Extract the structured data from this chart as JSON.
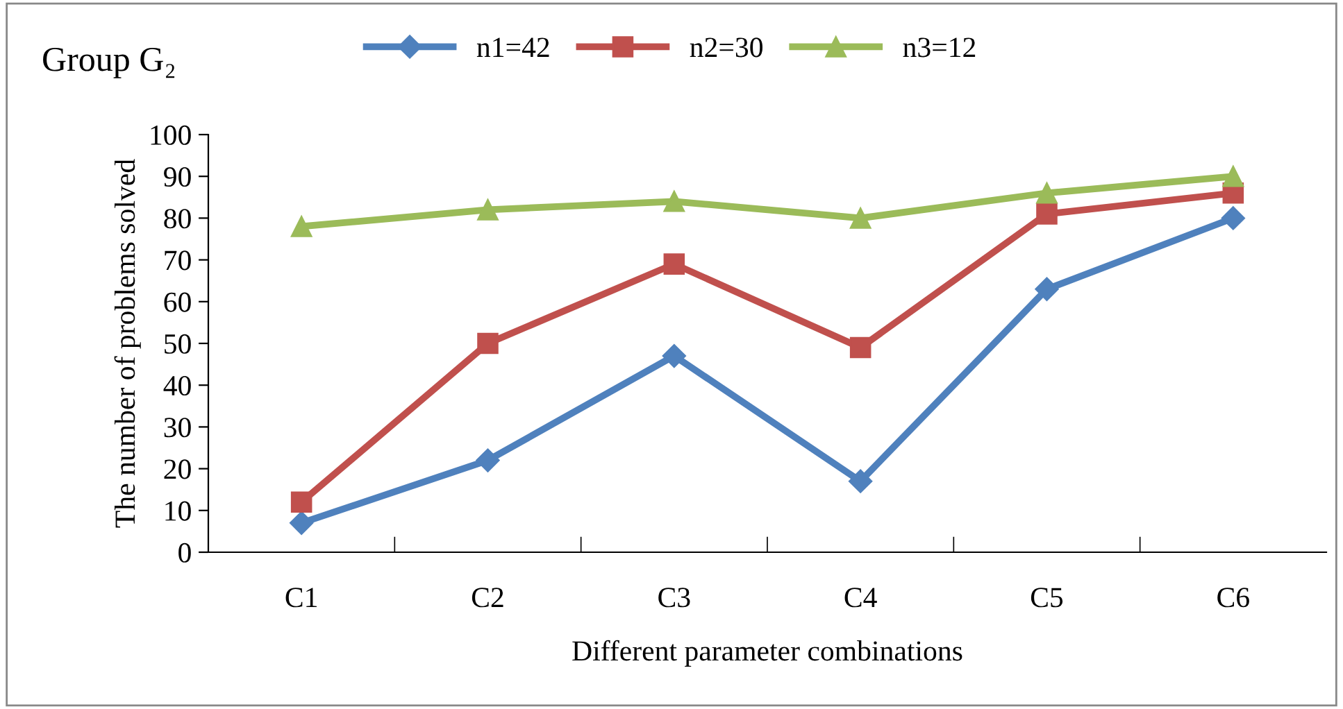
{
  "chart_data": {
    "type": "line",
    "title": "Group G₂",
    "xlabel": "Different parameter combinations",
    "ylabel": "The number of problems solved",
    "categories": [
      "C1",
      "C2",
      "C3",
      "C4",
      "C5",
      "C6"
    ],
    "series": [
      {
        "name": "n1=42",
        "color": "#4f81bd",
        "marker": "diamond",
        "values": [
          7,
          22,
          47,
          17,
          63,
          80
        ]
      },
      {
        "name": "n2=30",
        "color": "#c0504d",
        "marker": "square",
        "values": [
          12,
          50,
          69,
          49,
          81,
          86
        ]
      },
      {
        "name": "n3=12",
        "color": "#9bbb59",
        "marker": "triangle",
        "values": [
          78,
          82,
          84,
          80,
          86,
          90
        ]
      }
    ],
    "ylim": [
      0,
      100
    ],
    "yticks": [
      0,
      10,
      20,
      30,
      40,
      50,
      60,
      70,
      80,
      90,
      100
    ],
    "grid": false,
    "legend": "top",
    "line_style": "solid"
  }
}
